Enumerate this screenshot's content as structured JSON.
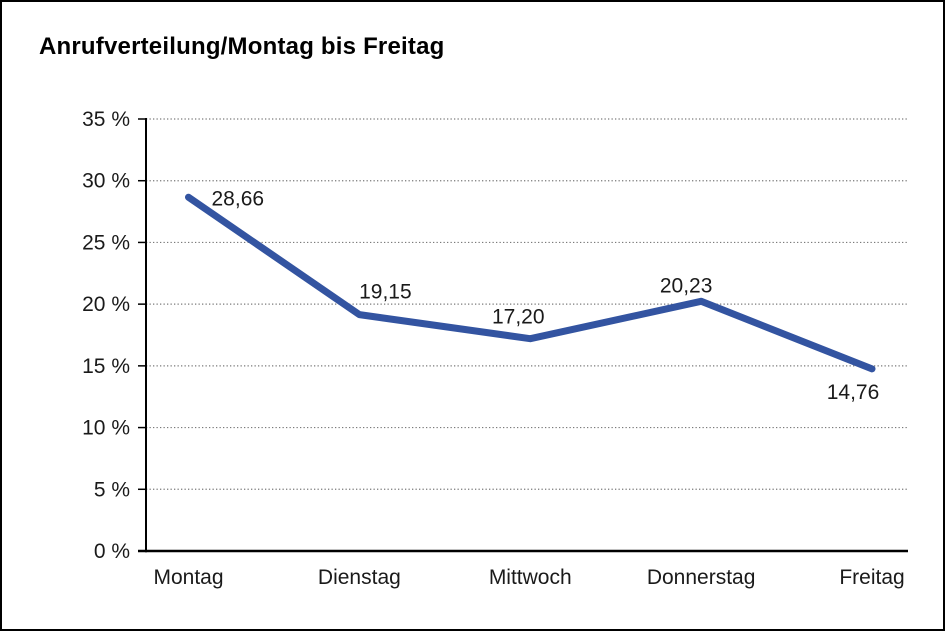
{
  "page": {
    "background": "#ffffff",
    "frame_border_color": "#000000"
  },
  "chart_data": {
    "type": "line",
    "title": "Anrufverteilung/Montag bis Freitag",
    "categories": [
      "Montag",
      "Dienstag",
      "Mittwoch",
      "Donnerstag",
      "Freitag"
    ],
    "values": [
      28.66,
      19.15,
      17.2,
      20.23,
      14.76
    ],
    "value_labels": [
      "28,66",
      "19,15",
      "17,20",
      "20,23",
      "14,76"
    ],
    "xlabel": "",
    "ylabel": "",
    "ylim": [
      0,
      35
    ],
    "ytick_step": 5,
    "ytick_labels": [
      "0 %",
      "5 %",
      "10 %",
      "15 %",
      "20 %",
      "25 %",
      "30 %",
      "35 %"
    ],
    "grid": "horizontal-dotted",
    "legend": "none",
    "colors": {
      "line": "#3354A1",
      "grid": "#7a7a7a",
      "axis": "#000000",
      "text": "#1a1a1a"
    }
  }
}
